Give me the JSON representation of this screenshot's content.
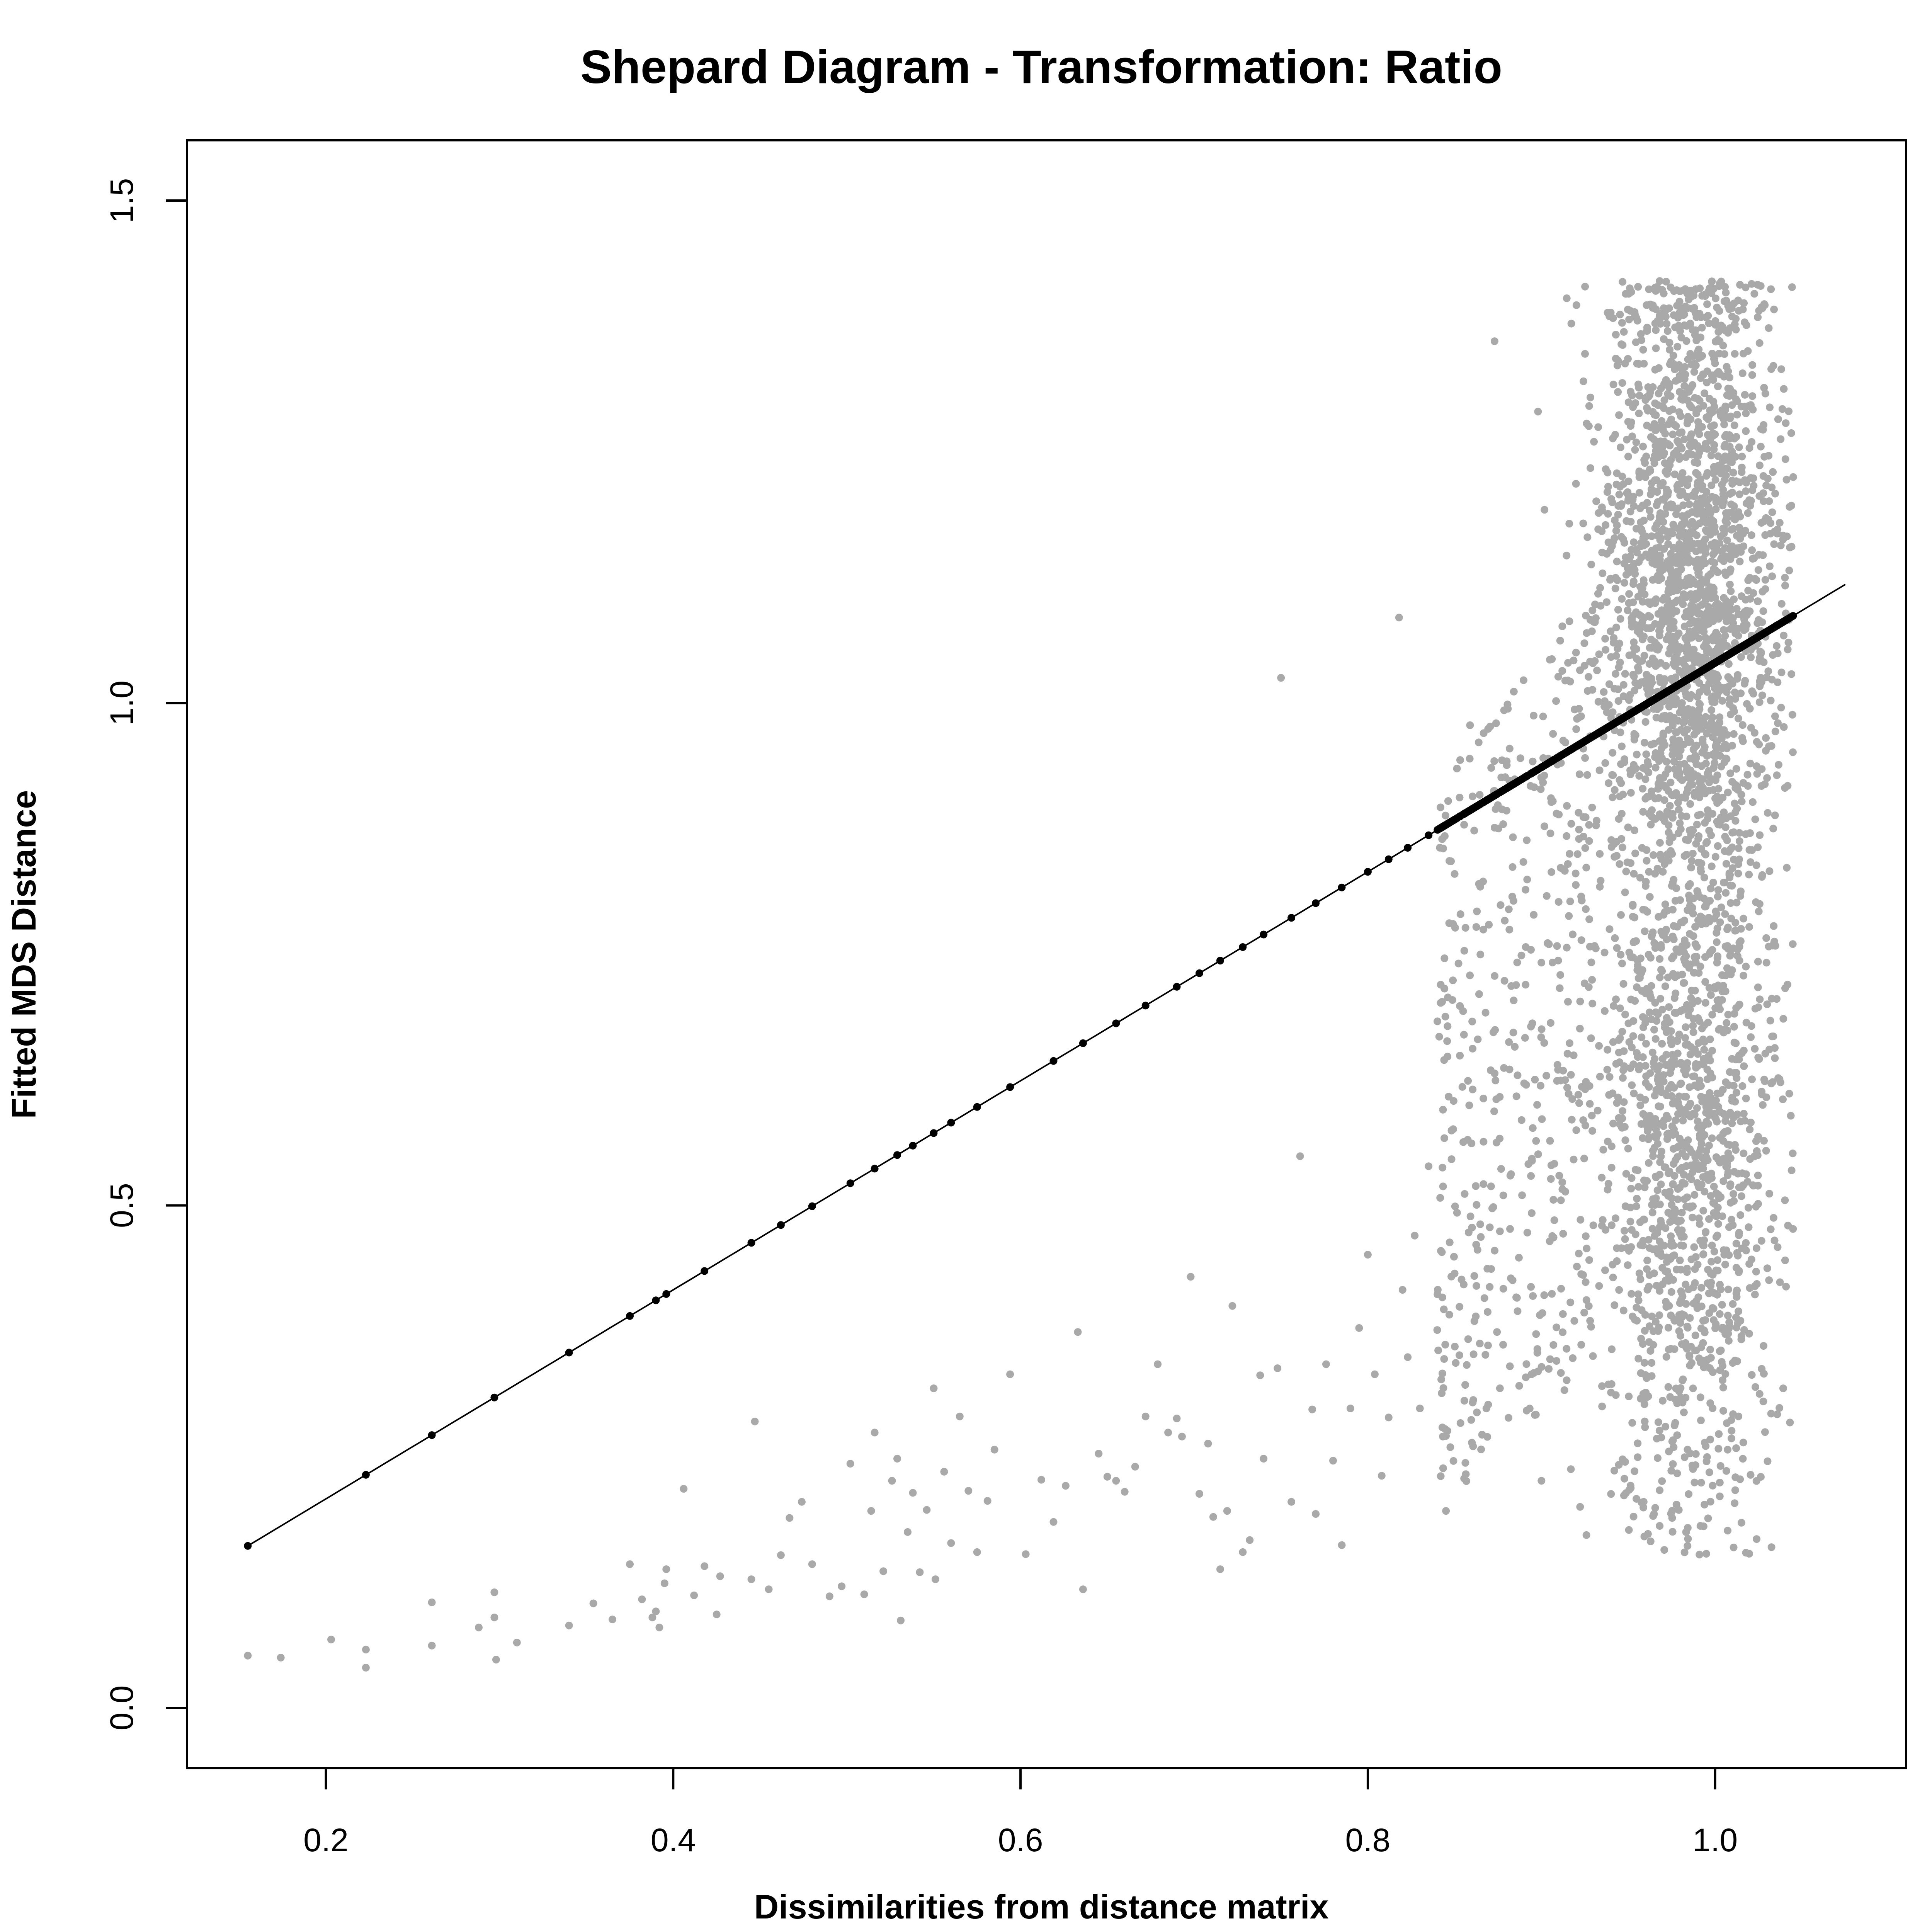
{
  "chart_data": {
    "type": "scatter",
    "title": "Shepard Diagram - Transformation: Ratio",
    "xlabel": "Dissimilarities from distance matrix",
    "ylabel": "Fitted MDS Distance",
    "xlim": [
      0.12,
      1.11
    ],
    "ylim": [
      -0.06,
      1.56
    ],
    "x_ticks": [
      {
        "value": 0.2,
        "label": "0.2"
      },
      {
        "value": 0.4,
        "label": "0.4"
      },
      {
        "value": 0.6,
        "label": "0.6"
      },
      {
        "value": 0.8,
        "label": "0.8"
      },
      {
        "value": 1.0,
        "label": "1.0"
      }
    ],
    "y_ticks": [
      {
        "value": 0.0,
        "label": "0.0"
      },
      {
        "value": 0.5,
        "label": "0.5"
      },
      {
        "value": 1.0,
        "label": "1.0"
      },
      {
        "value": 1.5,
        "label": "1.5"
      }
    ],
    "grid": false,
    "legend": "none",
    "series": [
      {
        "kind": "points",
        "color": "#A9A9A9",
        "note_points": [
          [
            0.155,
            0.052
          ],
          [
            0.174,
            0.05
          ],
          [
            0.203,
            0.068
          ],
          [
            0.223,
            0.058
          ],
          [
            0.223,
            0.04
          ],
          [
            0.261,
            0.062
          ],
          [
            0.261,
            0.105
          ],
          [
            0.288,
            0.08
          ],
          [
            0.297,
            0.09
          ],
          [
            0.297,
            0.115
          ],
          [
            0.298,
            0.048
          ],
          [
            0.31,
            0.065
          ],
          [
            0.34,
            0.082
          ],
          [
            0.354,
            0.104
          ],
          [
            0.365,
            0.088
          ],
          [
            0.375,
            0.143
          ],
          [
            0.382,
            0.108
          ],
          [
            0.388,
            0.09
          ],
          [
            0.39,
            0.096
          ],
          [
            0.392,
            0.08
          ],
          [
            0.395,
            0.124
          ],
          [
            0.396,
            0.138
          ],
          [
            0.406,
            0.218
          ],
          [
            0.412,
            0.112
          ],
          [
            0.418,
            0.141
          ],
          [
            0.425,
            0.093
          ],
          [
            0.427,
            0.131
          ],
          [
            0.445,
            0.128
          ],
          [
            0.447,
            0.285
          ],
          [
            0.455,
            0.118
          ],
          [
            0.462,
            0.152
          ],
          [
            0.467,
            0.189
          ],
          [
            0.474,
            0.205
          ],
          [
            0.48,
            0.143
          ],
          [
            0.49,
            0.111
          ],
          [
            0.497,
            0.121
          ],
          [
            0.502,
            0.243
          ],
          [
            0.51,
            0.113
          ],
          [
            0.514,
            0.196
          ],
          [
            0.516,
            0.274
          ],
          [
            0.521,
            0.136
          ],
          [
            0.526,
            0.226
          ],
          [
            0.529,
            0.248
          ],
          [
            0.531,
            0.087
          ],
          [
            0.535,
            0.175
          ],
          [
            0.538,
            0.214
          ],
          [
            0.542,
            0.135
          ],
          [
            0.546,
            0.197
          ],
          [
            0.55,
            0.318
          ],
          [
            0.551,
            0.128
          ],
          [
            0.556,
            0.235
          ],
          [
            0.56,
            0.164
          ],
          [
            0.565,
            0.29
          ],
          [
            0.57,
            0.216
          ],
          [
            0.575,
            0.155
          ],
          [
            0.581,
            0.206
          ],
          [
            0.585,
            0.257
          ],
          [
            0.594,
            0.332
          ],
          [
            0.603,
            0.153
          ],
          [
            0.612,
            0.227
          ],
          [
            0.619,
            0.185
          ],
          [
            0.626,
            0.221
          ],
          [
            0.633,
            0.374
          ],
          [
            0.636,
            0.118
          ],
          [
            0.645,
            0.253
          ],
          [
            0.65,
            0.23
          ],
          [
            0.655,
            0.226
          ],
          [
            0.66,
            0.215
          ],
          [
            0.666,
            0.24
          ],
          [
            0.672,
            0.29
          ],
          [
            0.679,
            0.342
          ],
          [
            0.685,
            0.274
          ],
          [
            0.69,
            0.288
          ],
          [
            0.693,
            0.27
          ],
          [
            0.698,
            0.429
          ],
          [
            0.703,
            0.213
          ],
          [
            0.708,
            0.263
          ],
          [
            0.711,
            0.19
          ],
          [
            0.715,
            0.138
          ],
          [
            0.719,
            0.196
          ],
          [
            0.722,
            0.4
          ],
          [
            0.728,
            0.155
          ],
          [
            0.732,
            0.167
          ],
          [
            0.738,
            0.331
          ],
          [
            0.74,
            0.248
          ],
          [
            0.748,
            0.338
          ],
          [
            0.75,
            1.025
          ],
          [
            0.756,
            0.205
          ],
          [
            0.761,
            0.549
          ],
          [
            0.768,
            0.297
          ],
          [
            0.77,
            0.193
          ],
          [
            0.776,
            0.342
          ],
          [
            0.78,
            0.246
          ],
          [
            0.785,
            0.162
          ],
          [
            0.79,
            0.298
          ],
          [
            0.795,
            0.378
          ],
          [
            0.8,
            0.451
          ],
          [
            0.804,
            0.332
          ],
          [
            0.808,
            0.231
          ],
          [
            0.812,
            0.289
          ],
          [
            0.818,
            1.085
          ],
          [
            0.82,
            0.416
          ],
          [
            0.823,
            0.349
          ],
          [
            0.827,
            0.47
          ],
          [
            0.83,
            0.298
          ],
          [
            0.835,
            0.539
          ],
          [
            0.84,
            0.376
          ],
          [
            0.845,
            0.196
          ],
          [
            0.849,
            0.724
          ],
          [
            0.855,
            0.563
          ],
          [
            0.86,
            0.478
          ],
          [
            0.864,
            0.82
          ],
          [
            0.869,
            0.394
          ],
          [
            0.873,
            1.36
          ],
          [
            0.876,
            0.608
          ],
          [
            0.88,
            0.942
          ],
          [
            0.884,
            0.704
          ],
          [
            0.887,
            0.448
          ],
          [
            0.891,
            0.329
          ],
          [
            0.895,
            0.577
          ],
          [
            0.898,
            1.29
          ],
          [
            0.9,
            0.226
          ],
          [
            0.903,
            0.808
          ],
          [
            0.906,
            0.412
          ],
          [
            0.91,
            0.889
          ],
          [
            0.912,
            0.523
          ],
          [
            0.915,
            0.651
          ],
          [
            0.918,
            0.348
          ],
          [
            0.92,
            0.974
          ],
          [
            0.923,
            0.764
          ]
        ]
      },
      {
        "kind": "fitted-line",
        "color": "#000000",
        "slope": 1.04,
        "x_range": [
          0.155,
          1.075
        ]
      }
    ]
  }
}
